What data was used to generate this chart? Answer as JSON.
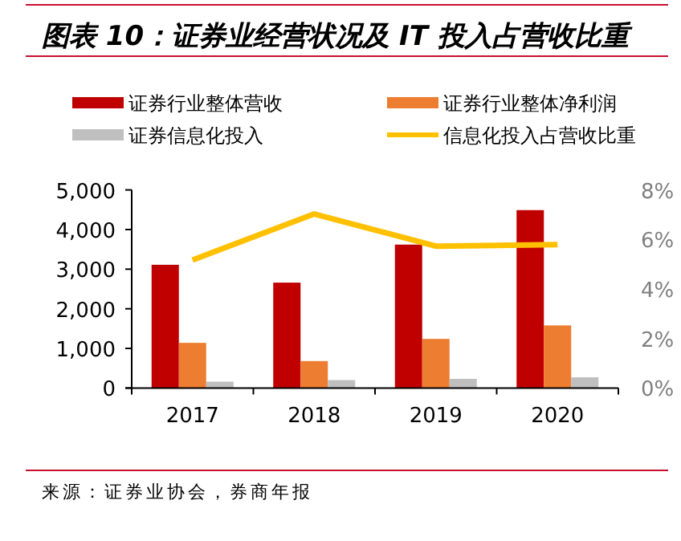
{
  "chart_data": {
    "type": "bar",
    "title": "图表 10：证券业经营状况及 IT 投入占营收比重",
    "categories": [
      "2017",
      "2018",
      "2019",
      "2020"
    ],
    "series": [
      {
        "name": "证券行业整体营收",
        "color": "#c00000",
        "values": [
          3110,
          2660,
          3620,
          4490
        ]
      },
      {
        "name": "证券行业整体净利润",
        "color": "#ed7d31",
        "values": [
          1140,
          680,
          1240,
          1580
        ]
      },
      {
        "name": "证券信息化投入",
        "color": "#bfbfbf",
        "values": [
          160,
          200,
          230,
          270
        ]
      },
      {
        "name": "信息化投入占营收比重",
        "type": "line",
        "axis": "y2",
        "color": "#ffc000",
        "values": [
          5.17,
          7.03,
          5.73,
          5.79
        ]
      }
    ],
    "ylim": [
      0,
      5000
    ],
    "yticks": [
      0,
      {
        "value": 1000,
        "label": "1,000"
      },
      {
        "value": 2000,
        "label": "2,000"
      },
      {
        "value": 3000,
        "label": "3,000"
      },
      {
        "value": 4000,
        "label": "4,000"
      },
      {
        "value": 5000,
        "label": "5,000"
      }
    ],
    "y2lim": [
      0,
      8
    ],
    "y2ticks": [
      {
        "value": 0,
        "label": "0%"
      },
      {
        "value": 2,
        "label": "2%"
      },
      {
        "value": 4,
        "label": "4%"
      },
      {
        "value": 6,
        "label": "6%"
      },
      {
        "value": 8,
        "label": "8%"
      }
    ],
    "legend": "top",
    "annotations": [
      "来源：证券业协会，券商年报"
    ]
  }
}
